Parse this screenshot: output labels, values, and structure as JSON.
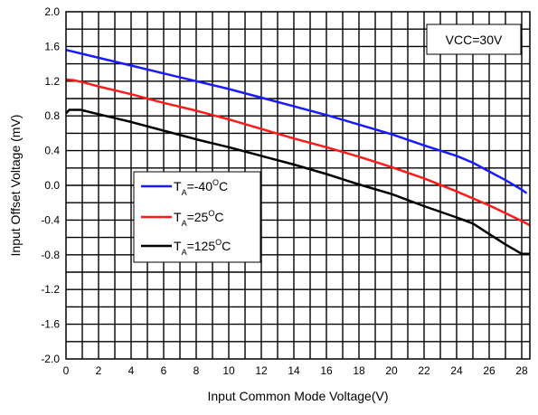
{
  "chart_data": {
    "type": "line",
    "xlabel": "Input Common Mode Voltage(V)",
    "ylabel": "Input Offset Voltage (mV)",
    "xlim": [
      0,
      28.5
    ],
    "ylim": [
      -2.0,
      2.0
    ],
    "x_ticks": [
      "0",
      "2",
      "4",
      "6",
      "8",
      "10",
      "12",
      "14",
      "16",
      "18",
      "20",
      "22",
      "24",
      "26",
      "28"
    ],
    "y_ticks": [
      "2.0",
      "1.6",
      "1.2",
      "0.8",
      "0.4",
      "0.0",
      "-0.4",
      "-0.8",
      "-1.2",
      "-1.6",
      "-2.0"
    ],
    "grid": true,
    "annotation": "VCC=30V",
    "legend_placement": "center-left",
    "series": [
      {
        "name": "T_A=-40°C",
        "legend": {
          "prefix": "T",
          "sub": "A",
          "value": "=-40",
          "sup": "O",
          "unit": "C"
        },
        "color": "#1a1aff",
        "x": [
          0,
          2,
          4,
          6,
          8,
          10,
          12,
          14,
          16,
          18,
          20,
          22,
          24,
          25,
          26,
          27,
          28,
          28.3
        ],
        "y": [
          1.56,
          1.47,
          1.38,
          1.29,
          1.2,
          1.11,
          1.01,
          0.91,
          0.81,
          0.7,
          0.59,
          0.46,
          0.34,
          0.26,
          0.16,
          0.06,
          -0.05,
          -0.09
        ]
      },
      {
        "name": "T_A=25°C",
        "legend": {
          "prefix": "T",
          "sub": "A",
          "value": "=25",
          "sup": "O",
          "unit": "C"
        },
        "color": "#ff1a1a",
        "x": [
          0,
          0.5,
          1,
          2,
          4,
          6,
          8,
          10,
          12,
          14,
          16,
          18,
          20,
          22,
          24,
          26,
          28,
          28.5
        ],
        "y": [
          1.22,
          1.21,
          1.19,
          1.14,
          1.05,
          0.95,
          0.86,
          0.76,
          0.65,
          0.54,
          0.44,
          0.33,
          0.21,
          0.08,
          -0.07,
          -0.23,
          -0.41,
          -0.46
        ]
      },
      {
        "name": "T_A=125°C",
        "legend": {
          "prefix": "T",
          "sub": "A",
          "value": "=125",
          "sup": "O",
          "unit": "C"
        },
        "color": "#000000",
        "x": [
          0,
          0.2,
          0.5,
          0.9,
          2,
          4,
          6,
          8,
          10,
          12,
          14,
          16,
          18,
          20,
          22,
          24,
          25,
          26,
          27,
          28,
          28.5
        ],
        "y": [
          0.83,
          0.87,
          0.87,
          0.87,
          0.82,
          0.73,
          0.63,
          0.53,
          0.44,
          0.34,
          0.24,
          0.13,
          0.01,
          -0.1,
          -0.24,
          -0.37,
          -0.44,
          -0.56,
          -0.68,
          -0.79,
          -0.79
        ]
      }
    ]
  }
}
